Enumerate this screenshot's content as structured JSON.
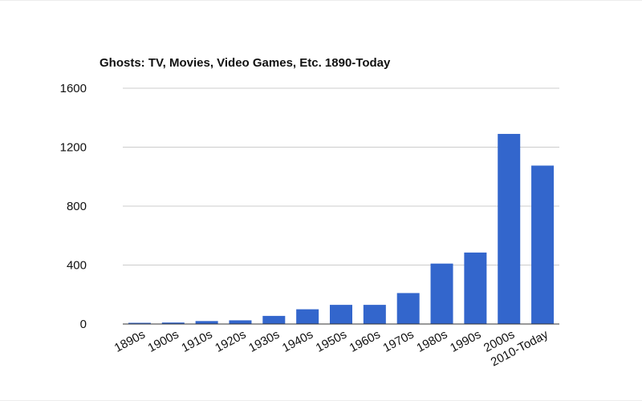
{
  "chart_data": {
    "type": "bar",
    "title": "Ghosts: TV, Movies, Video Games, Etc. 1890-Today",
    "xlabel": "",
    "ylabel": "",
    "categories": [
      "1890s",
      "1900s",
      "1910s",
      "1920s",
      "1930s",
      "1940s",
      "1950s",
      "1960s",
      "1970s",
      "1980s",
      "1990s",
      "2000s",
      "2010-Today"
    ],
    "values": [
      8,
      10,
      20,
      25,
      55,
      100,
      130,
      130,
      210,
      410,
      485,
      1290,
      1075
    ],
    "ylim": [
      0,
      1600
    ],
    "yticks": [
      "0",
      "400",
      "800",
      "1200",
      "1600"
    ],
    "grid": true,
    "bar_color": "#3366cc"
  }
}
